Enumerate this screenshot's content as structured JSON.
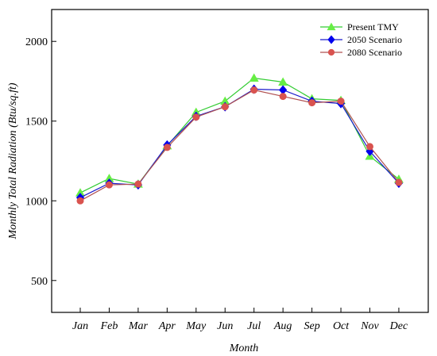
{
  "chart_data": {
    "type": "line",
    "xlabel": "Month",
    "ylabel": "Monthly Total Radiation (Btu/sq.ft)",
    "categories": [
      "Jan",
      "Feb",
      "Mar",
      "Apr",
      "May",
      "Jun",
      "Jul",
      "Aug",
      "Sep",
      "Oct",
      "Nov",
      "Dec"
    ],
    "ylim": [
      300,
      2200
    ],
    "yticks": [
      500,
      1000,
      1500,
      2000
    ],
    "grid": false,
    "legend_position": "top-right",
    "series": [
      {
        "name": "Present TMY",
        "marker": "triangle",
        "color": "#33cc33",
        "marker_color": "#66ee44",
        "values": [
          1050,
          1140,
          1105,
          1345,
          1555,
          1625,
          1770,
          1745,
          1640,
          1630,
          1280,
          1135
        ]
      },
      {
        "name": "2050 Scenario",
        "marker": "diamond",
        "color": "#1a1acc",
        "marker_color": "#0000ee",
        "values": [
          1020,
          1110,
          1100,
          1350,
          1530,
          1590,
          1700,
          1695,
          1625,
          1610,
          1310,
          1110
        ]
      },
      {
        "name": "2080 Scenario",
        "marker": "circle",
        "color": "#b05050",
        "marker_color": "#d9534f",
        "values": [
          1000,
          1100,
          1105,
          1335,
          1525,
          1590,
          1695,
          1655,
          1615,
          1625,
          1340,
          1115
        ]
      }
    ]
  }
}
